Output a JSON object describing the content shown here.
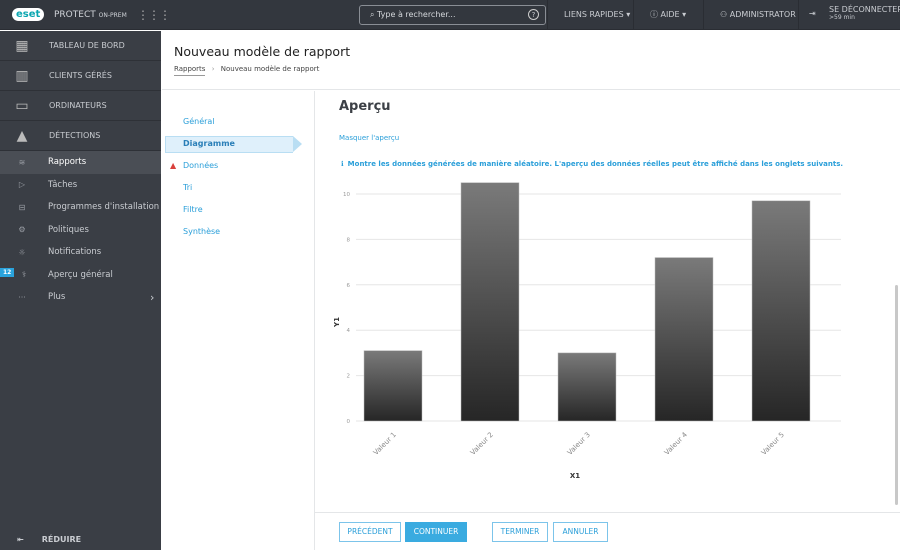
{
  "topbar": {
    "logo": "eset",
    "product": "PROTECT",
    "product_sub": "ON-PREM",
    "search_placeholder": "Type à rechercher...",
    "quick_links": "LIENS RAPIDES",
    "help": "AIDE",
    "user": "ADMINISTRATOR",
    "logout": "SE DÉCONNECTER",
    "logout_time": ">59 min"
  },
  "sidebar": {
    "main": [
      {
        "label": "TABLEAU DE BORD",
        "icon": "dashboard-icon"
      },
      {
        "label": "CLIENTS GÉRÉS",
        "icon": "building-icon"
      },
      {
        "label": "ORDINATEURS",
        "icon": "computer-icon"
      },
      {
        "label": "DÉTECTIONS",
        "icon": "warning-icon"
      }
    ],
    "items": [
      {
        "label": "Rapports",
        "icon": "reports-icon",
        "active": true
      },
      {
        "label": "Tâches",
        "icon": "tasks-icon"
      },
      {
        "label": "Programmes d'installation",
        "icon": "installer-icon"
      },
      {
        "label": "Politiques",
        "icon": "policies-icon"
      },
      {
        "label": "Notifications",
        "icon": "notifications-icon"
      },
      {
        "label": "Aperçu général",
        "icon": "status-icon",
        "badge": "12"
      },
      {
        "label": "Plus",
        "icon": "more-icon"
      }
    ],
    "collapse": "RÉDUIRE"
  },
  "header": {
    "title": "Nouveau modèle de rapport",
    "breadcrumb": [
      "Rapports",
      "Nouveau modèle de rapport"
    ]
  },
  "wizard": {
    "steps": [
      "Général",
      "Diagramme",
      "Données",
      "Tri",
      "Filtre",
      "Synthèse"
    ],
    "active": "Diagramme",
    "warning_step": "Données"
  },
  "main": {
    "heading": "Aperçu",
    "hide_preview": "Masquer l'aperçu",
    "info": "Montre les données générées de manière aléatoire. L'aperçu des données réelles peut être affiché dans les onglets suivants."
  },
  "chart_data": {
    "type": "bar",
    "categories": [
      "Valeur 1",
      "Valeur 2",
      "Valeur 3",
      "Valeur 4",
      "Valeur 5"
    ],
    "values": [
      3.1,
      10.5,
      3.0,
      7.2,
      9.7
    ],
    "xlabel": "X1",
    "ylabel": "Y1",
    "ylim": [
      0,
      10.5
    ],
    "yticks": [
      "0",
      "2",
      "4",
      "6",
      "8",
      "10"
    ],
    "grid": true,
    "colors": {
      "bar_top": "#7a7a7a",
      "bar_bottom": "#262626"
    }
  },
  "footer": {
    "previous": "PRÉCÉDENT",
    "continue": "CONTINUER",
    "finish": "TERMINER",
    "cancel": "ANNULER"
  }
}
